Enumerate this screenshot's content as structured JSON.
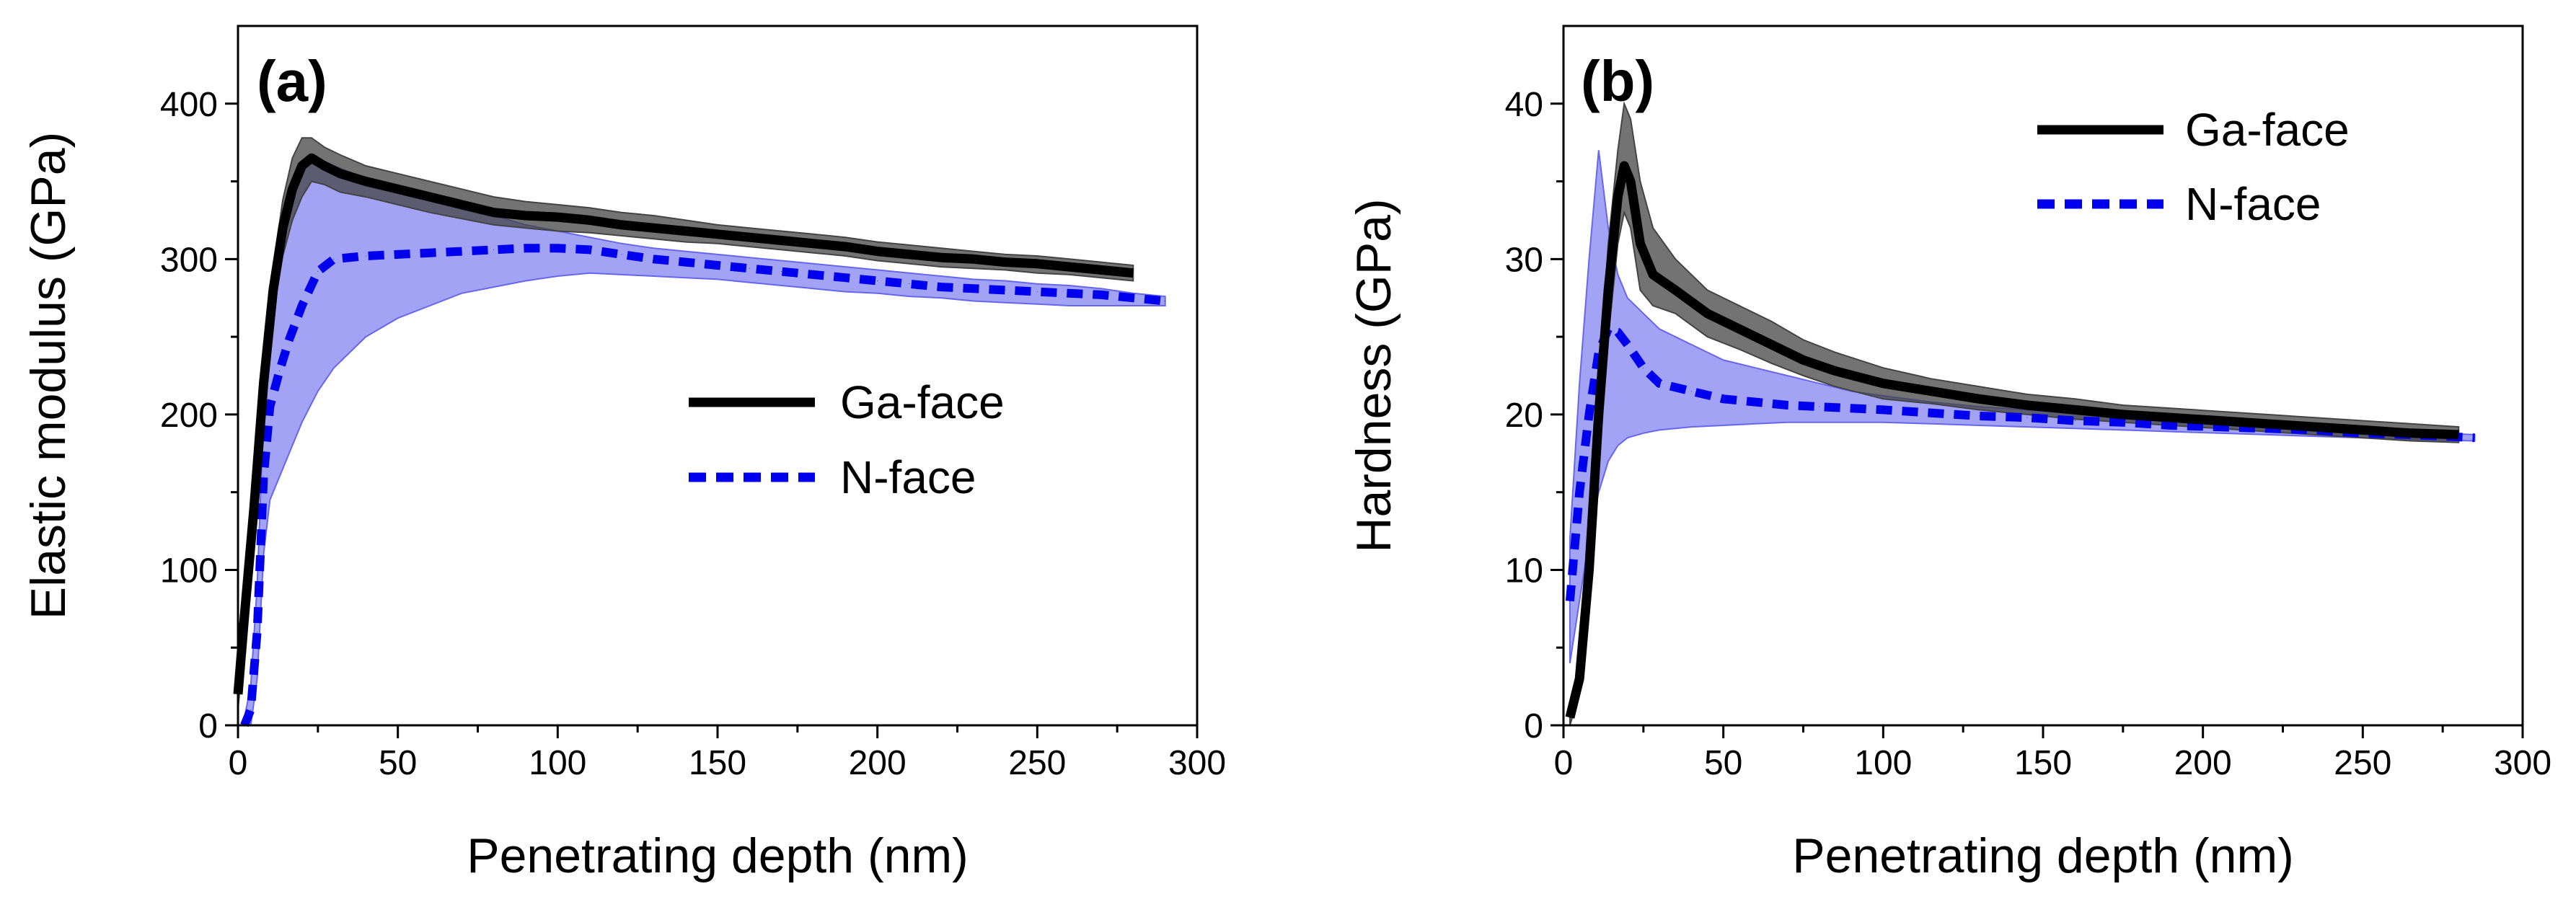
{
  "chart_data": [
    {
      "type": "line",
      "panel_label": "(a)",
      "xlabel": "Penetrating depth (nm)",
      "ylabel": "Elastic modulus (GPa)",
      "xlim": [
        0,
        300
      ],
      "ylim": [
        0,
        450
      ],
      "x_ticks": [
        0,
        50,
        100,
        150,
        200,
        250,
        300
      ],
      "y_ticks": [
        0,
        100,
        200,
        300,
        400
      ],
      "grid": false,
      "legend": "center-right",
      "series": [
        {
          "name": "Ga-face",
          "style": "solid",
          "color": "#000000",
          "band_color": "#444444",
          "x": [
            0,
            2,
            5,
            8,
            11,
            14,
            17,
            20,
            23,
            27,
            32,
            40,
            50,
            60,
            70,
            80,
            90,
            100,
            110,
            120,
            130,
            140,
            150,
            160,
            170,
            180,
            190,
            200,
            210,
            220,
            230,
            240,
            250,
            260,
            270,
            280
          ],
          "y": [
            20,
            70,
            140,
            220,
            280,
            320,
            345,
            360,
            365,
            360,
            355,
            350,
            345,
            340,
            335,
            330,
            328,
            327,
            325,
            322,
            320,
            318,
            316,
            314,
            312,
            310,
            308,
            305,
            303,
            301,
            300,
            298,
            297,
            295,
            293,
            291
          ],
          "upper": [
            30,
            85,
            155,
            235,
            295,
            338,
            365,
            378,
            378,
            372,
            367,
            360,
            355,
            350,
            345,
            340,
            337,
            335,
            333,
            330,
            328,
            325,
            322,
            320,
            318,
            316,
            314,
            311,
            309,
            307,
            305,
            303,
            302,
            300,
            298,
            296
          ],
          "lower": [
            10,
            55,
            125,
            205,
            265,
            302,
            325,
            340,
            350,
            348,
            343,
            340,
            335,
            330,
            326,
            322,
            320,
            318,
            317,
            315,
            313,
            311,
            310,
            308,
            306,
            304,
            302,
            299,
            297,
            295,
            294,
            293,
            291,
            290,
            288,
            286
          ]
        },
        {
          "name": "N-face",
          "style": "dashed",
          "color": "#0000ee",
          "band_color": "#6666ee",
          "x": [
            2,
            4,
            6,
            8,
            10,
            13,
            16,
            20,
            25,
            30,
            40,
            50,
            60,
            70,
            80,
            90,
            100,
            110,
            120,
            130,
            140,
            150,
            160,
            170,
            180,
            190,
            200,
            210,
            220,
            230,
            240,
            250,
            260,
            270,
            280,
            290
          ],
          "y": [
            0,
            10,
            60,
            160,
            205,
            228,
            248,
            270,
            292,
            300,
            302,
            303,
            304,
            305,
            306,
            307,
            307,
            306,
            303,
            300,
            298,
            296,
            294,
            292,
            290,
            288,
            286,
            284,
            282,
            281,
            280,
            279,
            278,
            277,
            275,
            273
          ],
          "upper": [
            5,
            25,
            90,
            200,
            260,
            300,
            335,
            360,
            365,
            360,
            352,
            345,
            340,
            333,
            328,
            322,
            318,
            314,
            310,
            307,
            305,
            303,
            301,
            299,
            297,
            295,
            293,
            291,
            289,
            287,
            286,
            284,
            283,
            281,
            278,
            276
          ],
          "lower": [
            0,
            0,
            30,
            110,
            145,
            160,
            175,
            195,
            215,
            230,
            250,
            262,
            270,
            278,
            282,
            286,
            289,
            291,
            290,
            289,
            288,
            287,
            285,
            283,
            281,
            279,
            278,
            276,
            275,
            273,
            272,
            271,
            270,
            270,
            270,
            270
          ]
        }
      ]
    },
    {
      "type": "line",
      "panel_label": "(b)",
      "xlabel": "Penetrating depth (nm)",
      "ylabel": "Hardness (GPa)",
      "xlim": [
        0,
        300
      ],
      "ylim": [
        0,
        45
      ],
      "x_ticks": [
        0,
        50,
        100,
        150,
        200,
        250,
        300
      ],
      "y_ticks": [
        0,
        10,
        20,
        30,
        40
      ],
      "grid": false,
      "legend": "top-right",
      "series": [
        {
          "name": "Ga-face",
          "style": "solid",
          "color": "#000000",
          "band_color": "#444444",
          "x": [
            2,
            5,
            8,
            11,
            14,
            17,
            19,
            21,
            24,
            28,
            35,
            45,
            55,
            65,
            75,
            85,
            100,
            115,
            130,
            145,
            160,
            175,
            190,
            205,
            220,
            235,
            250,
            265,
            280
          ],
          "y": [
            0.5,
            3,
            10,
            20,
            28,
            34,
            36,
            35,
            31,
            29,
            28,
            26.5,
            25.5,
            24.5,
            23.5,
            22.8,
            22,
            21.5,
            21,
            20.6,
            20.3,
            20,
            19.8,
            19.6,
            19.4,
            19.2,
            19,
            18.8,
            18.7
          ],
          "upper": [
            1,
            4,
            12,
            22,
            31,
            37,
            40,
            39,
            35,
            32,
            30,
            28,
            27,
            26,
            24.8,
            24,
            23,
            22.3,
            21.8,
            21.3,
            21,
            20.6,
            20.4,
            20.2,
            20,
            19.8,
            19.6,
            19.4,
            19.2
          ],
          "lower": [
            0,
            2,
            8,
            18,
            25,
            31,
            33,
            32,
            28,
            27,
            26.5,
            25,
            24.2,
            23.3,
            22.5,
            21.8,
            21,
            20.7,
            20.3,
            20,
            19.7,
            19.5,
            19.3,
            19.1,
            18.9,
            18.7,
            18.5,
            18.3,
            18.2
          ]
        },
        {
          "name": "N-face",
          "style": "dashed",
          "color": "#0000ee",
          "band_color": "#6666ee",
          "x": [
            2,
            5,
            8,
            11,
            14,
            17,
            20,
            25,
            30,
            40,
            50,
            60,
            70,
            80,
            90,
            100,
            115,
            130,
            145,
            160,
            175,
            190,
            205,
            220,
            235,
            250,
            265,
            285
          ],
          "y": [
            8,
            15,
            20,
            24,
            25.5,
            25.3,
            24.5,
            23,
            22,
            21.5,
            21,
            20.8,
            20.6,
            20.5,
            20.4,
            20.3,
            20.1,
            19.9,
            19.8,
            19.6,
            19.5,
            19.3,
            19.2,
            19.1,
            19,
            18.8,
            18.7,
            18.5
          ],
          "upper": [
            12,
            22,
            30,
            37,
            32,
            29,
            27.5,
            26.5,
            25.5,
            24.5,
            23.5,
            23,
            22.5,
            22,
            21.5,
            21.2,
            20.8,
            20.5,
            20.3,
            20.1,
            19.9,
            19.7,
            19.5,
            19.4,
            19.3,
            19.1,
            18.9,
            18.7
          ],
          "lower": [
            4,
            8,
            12,
            15,
            17,
            18,
            18.5,
            18.8,
            19,
            19.2,
            19.3,
            19.4,
            19.5,
            19.5,
            19.5,
            19.5,
            19.4,
            19.3,
            19.2,
            19.1,
            19,
            18.9,
            18.8,
            18.7,
            18.6,
            18.5,
            18.4,
            18.3
          ]
        }
      ]
    }
  ]
}
